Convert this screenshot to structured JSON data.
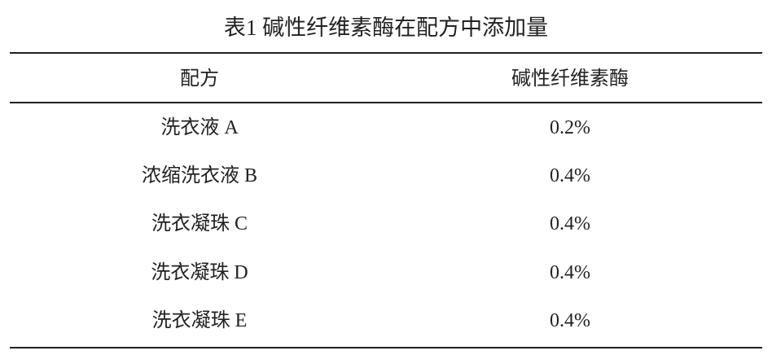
{
  "title": "表1 碱性纤维素酶在配方中添加量",
  "headers": [
    "配方",
    "碱性纤维素酶"
  ],
  "rows": [
    [
      "洗衣液 A",
      "0.2%"
    ],
    [
      "浓缩洗衣液 B",
      "0.4%"
    ],
    [
      "洗衣凝珠 C",
      "0.4%"
    ],
    [
      "洗衣凝珠 D",
      "0.4%"
    ],
    [
      "洗衣凝珠 E",
      "0.4%"
    ]
  ]
}
